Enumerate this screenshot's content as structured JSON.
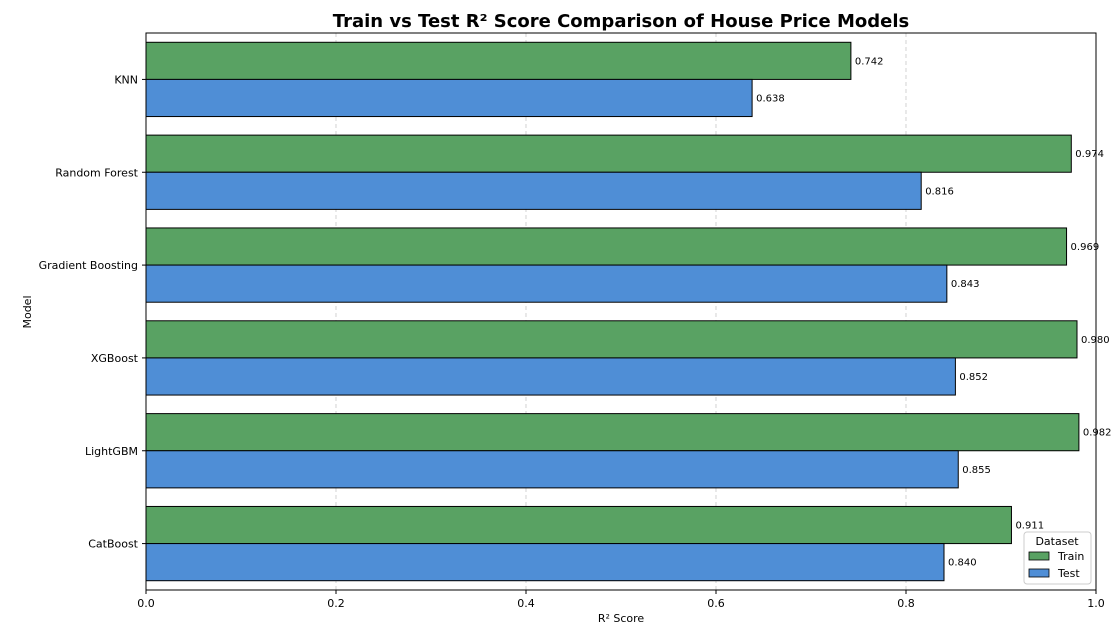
{
  "chart_data": {
    "type": "bar",
    "orientation": "horizontal",
    "title": "Train vs Test R² Score Comparison of House Price Models",
    "xlabel": "R² Score",
    "ylabel": "Model",
    "xlim": [
      0,
      1.0
    ],
    "xticks": [
      "0.0",
      "0.2",
      "0.4",
      "0.6",
      "0.8",
      "1.0"
    ],
    "xtick_values": [
      0,
      0.2,
      0.4,
      0.6,
      0.8,
      1.0
    ],
    "grid": "vertical dashed",
    "legend_title": "Dataset",
    "legend_placement": "bottom-right",
    "categories": [
      "KNN",
      "Random Forest",
      "Gradient Boosting",
      "XGBoost",
      "LightGBM",
      "CatBoost"
    ],
    "series": [
      {
        "name": "Train",
        "color": "#59a263",
        "values": [
          0.742,
          0.974,
          0.969,
          0.98,
          0.982,
          0.911
        ],
        "labels": [
          "0.742",
          "0.974",
          "0.969",
          "0.980",
          "0.982",
          "0.911"
        ]
      },
      {
        "name": "Test",
        "color": "#4f8ed6",
        "values": [
          0.638,
          0.816,
          0.843,
          0.852,
          0.855,
          0.84
        ],
        "labels": [
          "0.638",
          "0.816",
          "0.843",
          "0.852",
          "0.855",
          "0.840"
        ]
      }
    ]
  }
}
